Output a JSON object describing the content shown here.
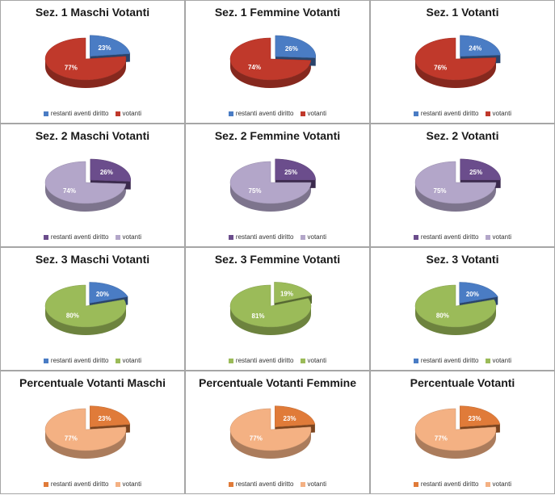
{
  "legend": {
    "a": "restanti aventi diritto",
    "b": "votanti"
  },
  "chart_data": [
    {
      "type": "pie",
      "title": "Sez. 1 Maschi Votanti",
      "categories": [
        "restanti aventi diritto",
        "votanti"
      ],
      "values": [
        23,
        77
      ],
      "colors": [
        "#4a7cc4",
        "#c0392b"
      ]
    },
    {
      "type": "pie",
      "title": "Sez. 1  Femmine Votanti",
      "categories": [
        "restanti aventi diritto",
        "votanti"
      ],
      "values": [
        26,
        74
      ],
      "colors": [
        "#4a7cc4",
        "#c0392b"
      ]
    },
    {
      "type": "pie",
      "title": "Sez. 1  Votanti",
      "categories": [
        "restanti aventi diritto",
        "votanti"
      ],
      "values": [
        24,
        76
      ],
      "colors": [
        "#4a7cc4",
        "#c0392b"
      ]
    },
    {
      "type": "pie",
      "title": "Sez. 2  Maschi Votanti",
      "categories": [
        "restanti aventi diritto",
        "votanti"
      ],
      "values": [
        26,
        74
      ],
      "colors": [
        "#6b4d8c",
        "#b3a6c9"
      ]
    },
    {
      "type": "pie",
      "title": "Sez. 2 Femmine Votanti",
      "categories": [
        "restanti aventi diritto",
        "votanti"
      ],
      "values": [
        25,
        75
      ],
      "colors": [
        "#6b4d8c",
        "#b3a6c9"
      ]
    },
    {
      "type": "pie",
      "title": "Sez. 2  Votanti",
      "categories": [
        "restanti aventi diritto",
        "votanti"
      ],
      "values": [
        25,
        75
      ],
      "colors": [
        "#6b4d8c",
        "#b3a6c9"
      ]
    },
    {
      "type": "pie",
      "title": "Sez. 3 Maschi Votanti",
      "categories": [
        "restanti aventi diritto",
        "votanti"
      ],
      "values": [
        20,
        80
      ],
      "colors": [
        "#4a7cc4",
        "#9bbb59"
      ]
    },
    {
      "type": "pie",
      "title": "Sez. 3  Femmine Votanti",
      "categories": [
        "restanti aventi diritto",
        "votanti"
      ],
      "values": [
        19,
        81
      ],
      "colors": [
        "#9bbb59",
        "#9bbb59"
      ]
    },
    {
      "type": "pie",
      "title": "Sez. 3  Votanti",
      "categories": [
        "restanti aventi diritto",
        "votanti"
      ],
      "values": [
        20,
        80
      ],
      "colors": [
        "#4a7cc4",
        "#9bbb59"
      ]
    },
    {
      "type": "pie",
      "title": "Percentuale  Votanti Maschi",
      "categories": [
        "restanti aventi diritto",
        "votanti"
      ],
      "values": [
        23,
        77
      ],
      "colors": [
        "#e07b39",
        "#f4b183"
      ]
    },
    {
      "type": "pie",
      "title": "Percentuale Votanti Femmine",
      "categories": [
        "restanti aventi diritto",
        "votanti"
      ],
      "values": [
        23,
        77
      ],
      "colors": [
        "#e07b39",
        "#f4b183"
      ]
    },
    {
      "type": "pie",
      "title": "Percentuale Votanti",
      "categories": [
        "restanti aventi diritto",
        "votanti"
      ],
      "values": [
        23,
        77
      ],
      "colors": [
        "#e07b39",
        "#f4b183"
      ]
    }
  ]
}
